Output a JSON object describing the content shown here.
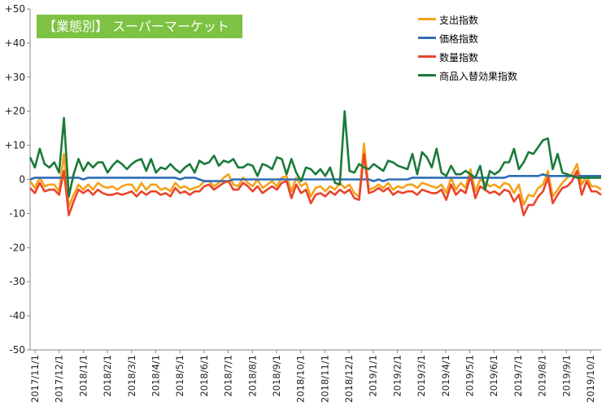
{
  "title": "【業態別】 スーパーマーケット",
  "chart_data": {
    "type": "line",
    "ylim": [
      -50,
      50
    ],
    "yticks": [
      "+50",
      "+40",
      "+30",
      "+20",
      "+10",
      "0",
      "-10",
      "-20",
      "-30",
      "-40",
      "-50"
    ],
    "xticks": [
      "2017/11/1",
      "2017/12/1",
      "2018/1/1",
      "2018/2/1",
      "2018/3/1",
      "2018/4/1",
      "2018/5/1",
      "2018/6/1",
      "2018/7/1",
      "2018/8/1",
      "2018/9/1",
      "2018/10/1",
      "2018/11/1",
      "2018/12/1",
      "2019/1/1",
      "2019/2/1",
      "2019/3/1",
      "2019/4/1",
      "2019/5/1",
      "2019/6/1",
      "2019/7/1",
      "2019/8/1",
      "2019/9/1",
      "2019/10/1"
    ],
    "grid": false,
    "legend_position": "top-right",
    "series": [
      {
        "name": "支出指数",
        "color": "#f5a21b",
        "values": [
          -0.5,
          -2.5,
          0.5,
          -2,
          -1.5,
          -1.5,
          -3.5,
          7.5,
          -8,
          -4.5,
          -1.5,
          -3,
          -1.5,
          -3,
          -1,
          -2,
          -2.5,
          -2,
          -3,
          -2,
          -1.5,
          -1.5,
          -3.5,
          -1,
          -3,
          -1.5,
          -1.5,
          -3,
          -2.5,
          -3.5,
          -1,
          -2.5,
          -2,
          -3,
          -2.5,
          -2,
          -0.5,
          -0.5,
          -2,
          -1,
          0.5,
          1.5,
          -1.5,
          -2,
          0.5,
          -1,
          -2,
          0,
          -2.5,
          -1.5,
          -0.5,
          -2,
          0.5,
          1,
          -3.5,
          0.5,
          -2,
          -1,
          -5,
          -2.5,
          -2,
          -3.5,
          -2,
          -3,
          -1,
          -2.5,
          -1.5,
          -4,
          -5,
          10.5,
          -3,
          -2.5,
          -1.5,
          -2.5,
          -1,
          -3,
          -2,
          -2.5,
          -1.5,
          -1.5,
          -2.5,
          -1,
          -1.5,
          -2,
          -2.5,
          -1.5,
          -4,
          0.5,
          -3,
          -1,
          -2.5,
          3,
          -3.5,
          0,
          -1,
          -2,
          -1.5,
          -2.5,
          -1,
          -1.5,
          -4,
          -1.5,
          -7.5,
          -4.5,
          -5,
          -2.5,
          -1.5,
          2.5,
          -5,
          -3,
          -1,
          0.5,
          1.5,
          4.5,
          -1.5,
          1,
          -2,
          -2,
          -3
        ]
      },
      {
        "name": "価格指数",
        "color": "#2f6db5",
        "values": [
          0,
          0.5,
          0.5,
          0.5,
          0.5,
          0.5,
          0.5,
          0.5,
          0.5,
          0.5,
          0.5,
          0,
          0.5,
          0.5,
          0.5,
          0.5,
          0.5,
          0.5,
          0.5,
          0.5,
          0.5,
          0.5,
          0.5,
          0.5,
          0.5,
          0.5,
          0.5,
          0.5,
          0.5,
          0.5,
          0.5,
          0,
          0.5,
          0.5,
          0.5,
          0,
          -0.5,
          -0.5,
          -0.5,
          -0.5,
          -0.5,
          -0.5,
          0,
          0,
          0,
          0,
          0,
          0,
          0,
          0,
          0,
          0,
          0,
          0,
          0,
          0,
          0,
          0,
          0,
          0,
          0,
          0,
          0,
          0,
          0,
          0,
          0,
          0,
          0,
          0,
          0,
          -0.5,
          0,
          -0.5,
          0,
          0,
          0,
          0,
          0,
          0.5,
          0.5,
          0.5,
          0.5,
          0.5,
          0.5,
          0.5,
          0.5,
          0.5,
          0.5,
          0.5,
          0.5,
          0.5,
          0.5,
          0.5,
          0.5,
          0.5,
          0.5,
          0.5,
          0.5,
          1,
          1,
          1,
          1,
          1,
          1,
          1,
          1.5,
          1,
          1,
          1,
          1,
          1,
          1,
          1,
          1,
          1,
          1,
          1,
          1
        ]
      },
      {
        "name": "数量指数",
        "color": "#e8452c",
        "values": [
          -2.5,
          -4,
          -1,
          -3.5,
          -3,
          -3,
          -4.5,
          2.5,
          -10.5,
          -6.5,
          -3,
          -4,
          -3,
          -4.5,
          -3,
          -4,
          -4.5,
          -4.5,
          -4,
          -4.5,
          -4,
          -3.5,
          -5,
          -3.5,
          -4.5,
          -3.5,
          -3.5,
          -4.5,
          -4,
          -5,
          -2.5,
          -4,
          -3.5,
          -4.5,
          -3.5,
          -3.5,
          -2,
          -1.5,
          -3,
          -2,
          -1,
          -0.5,
          -3,
          -3,
          -1,
          -2,
          -3.5,
          -2,
          -4,
          -3,
          -2,
          -3,
          -1,
          -0.5,
          -5.5,
          -1.5,
          -4,
          -3,
          -7,
          -4.5,
          -4,
          -5,
          -3.5,
          -4.5,
          -3,
          -4,
          -3,
          -5.5,
          -6,
          7.5,
          -4,
          -3.5,
          -2.5,
          -3.5,
          -2.5,
          -4.5,
          -3.5,
          -4,
          -3.5,
          -3.5,
          -4.5,
          -3,
          -3.5,
          -4,
          -4,
          -3,
          -6,
          -1.5,
          -4.5,
          -3,
          -4,
          1,
          -5.5,
          -2,
          -3,
          -4,
          -3.5,
          -4.5,
          -3,
          -3.5,
          -6.5,
          -4.5,
          -10.5,
          -7.5,
          -7.5,
          -5,
          -3.5,
          0.5,
          -7,
          -4.5,
          -2.5,
          -2,
          -0.5,
          2.5,
          -4.5,
          -0.5,
          -3.5,
          -3.5,
          -4.5
        ]
      },
      {
        "name": "商品入替効果指数",
        "color": "#1a7a3a",
        "values": [
          6.5,
          3.5,
          9,
          4.5,
          3.5,
          5,
          2,
          18,
          -5,
          1.5,
          6,
          2.5,
          5,
          3.5,
          5,
          5,
          2,
          4,
          5.5,
          4.5,
          3,
          4.5,
          5.5,
          6,
          2.5,
          6,
          2,
          3.5,
          3,
          4.5,
          3,
          2,
          3.5,
          4.5,
          2,
          5.5,
          4.5,
          5,
          7,
          4,
          5.5,
          5,
          6,
          3.5,
          3.5,
          4.5,
          4,
          1,
          4.5,
          4,
          3,
          6.5,
          6,
          1.5,
          6,
          2,
          -0.5,
          3.5,
          3,
          1.5,
          3,
          1,
          3.5,
          -1,
          -1.5,
          20,
          2.5,
          2,
          4.5,
          3.5,
          3,
          4.5,
          3.5,
          2.5,
          5.5,
          5,
          4,
          3.5,
          3,
          7.5,
          1.5,
          8,
          6.5,
          3.5,
          9,
          2,
          1,
          4,
          1.5,
          1.5,
          2.5,
          1.5,
          0.5,
          4,
          -3,
          2.5,
          1.5,
          2.5,
          5,
          5,
          9,
          3,
          5,
          8,
          7.5,
          9.5,
          11.5,
          12,
          3,
          7.5,
          2,
          1.5,
          1,
          0.5,
          0.5,
          0.5,
          0.5,
          0.5,
          0.5
        ]
      }
    ]
  }
}
